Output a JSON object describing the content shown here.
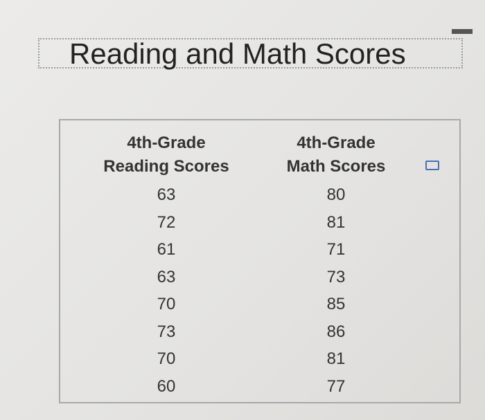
{
  "title": "Reading and Math Scores",
  "table": {
    "header": [
      [
        "4th-Grade",
        "Reading Scores"
      ],
      [
        "4th-Grade",
        "Math Scores"
      ]
    ],
    "rows": [
      [
        63,
        80
      ],
      [
        72,
        81
      ],
      [
        61,
        71
      ],
      [
        63,
        73
      ],
      [
        70,
        85
      ],
      [
        73,
        86
      ],
      [
        70,
        81
      ],
      [
        60,
        77
      ]
    ]
  }
}
